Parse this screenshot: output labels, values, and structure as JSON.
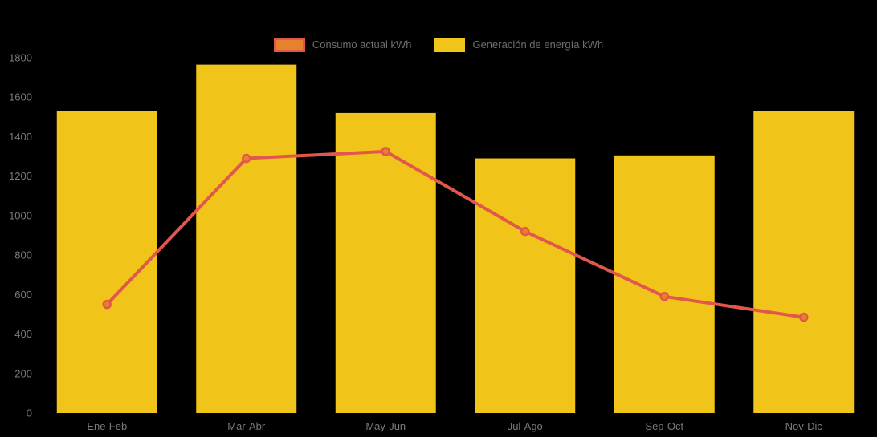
{
  "colors": {
    "background": "#000000",
    "bar": "#f0c419",
    "line": "#e2574c",
    "marker_fill": "#e5832d",
    "axis_text": "#7a7a7a",
    "legend_text": "#6e6e6e"
  },
  "legend": {
    "items": [
      {
        "label": "Consumo actual kWh",
        "swatch_fill": "#e5832d",
        "swatch_border": "#e2574c"
      },
      {
        "label": "Generación de energía kWh",
        "swatch_fill": "#f0c419",
        "swatch_border": "#f0c419"
      }
    ]
  },
  "chart_data": {
    "type": "combo-bar-line",
    "title": "",
    "xlabel": "",
    "ylabel": "",
    "categories": [
      "Ene-Feb",
      "Mar-Abr",
      "May-Jun",
      "Jul-Ago",
      "Sep-Oct",
      "Nov-Dic"
    ],
    "series": [
      {
        "name": "Consumo actual kWh",
        "type": "line",
        "values": [
          550,
          1290,
          1325,
          920,
          590,
          485
        ],
        "color": "#e2574c",
        "marker_fill": "#e5832d"
      },
      {
        "name": "Generación de energía kWh",
        "type": "bar",
        "values": [
          1530,
          1765,
          1520,
          1290,
          1305,
          1530
        ],
        "color": "#f0c419"
      }
    ],
    "ylim": [
      0,
      1800
    ],
    "ytick_step": 200,
    "yticks": [
      0,
      200,
      400,
      600,
      800,
      1000,
      1200,
      1400,
      1600,
      1800
    ],
    "grid": false,
    "legend_position": "top-center",
    "background": "transparent-rendered-black"
  }
}
